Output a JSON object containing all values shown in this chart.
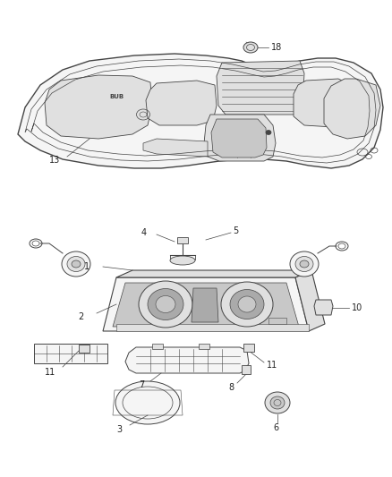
{
  "background_color": "#ffffff",
  "fig_width": 4.38,
  "fig_height": 5.33,
  "dpi": 100,
  "line_color": "#444444",
  "fill_light": "#f5f5f5",
  "fill_mid": "#e0e0e0",
  "fill_dark": "#c8c8c8",
  "fill_darker": "#aaaaaa"
}
